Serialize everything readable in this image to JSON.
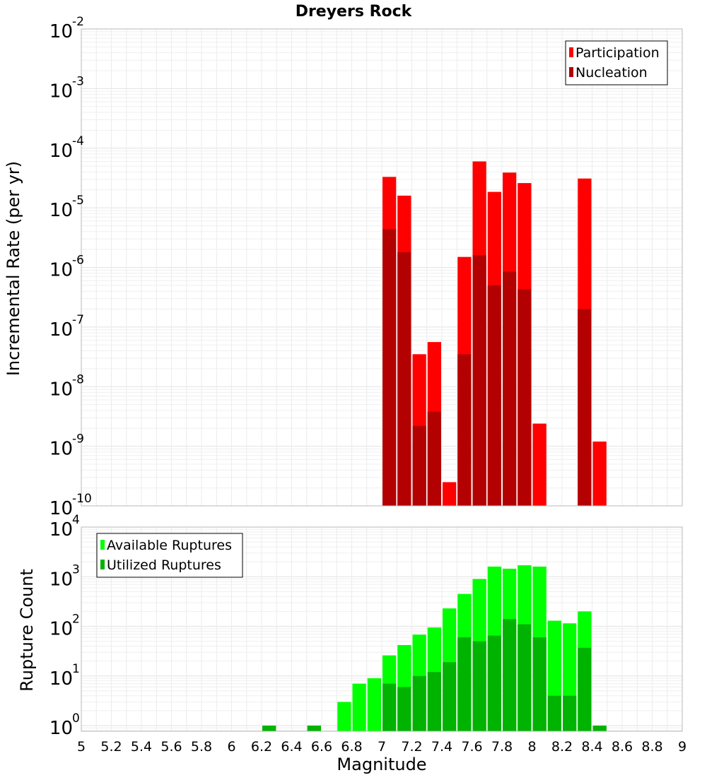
{
  "chart_data": [
    {
      "type": "bar",
      "title": "Dreyers Rock",
      "ylabel": "Incremental Rate (per yr)",
      "xlabel": "",
      "yscale": "log",
      "ylim": [
        1e-10,
        0.01
      ],
      "xlim": [
        5,
        9
      ],
      "legend_position": "top-right",
      "bar_width": 0.1,
      "y_ticks": [
        {
          "mantissa": "10",
          "exp": "-10"
        },
        {
          "mantissa": "10",
          "exp": "-9"
        },
        {
          "mantissa": "10",
          "exp": "-8"
        },
        {
          "mantissa": "10",
          "exp": "-7"
        },
        {
          "mantissa": "10",
          "exp": "-6"
        },
        {
          "mantissa": "10",
          "exp": "-5"
        },
        {
          "mantissa": "10",
          "exp": "-4"
        },
        {
          "mantissa": "10",
          "exp": "-3"
        },
        {
          "mantissa": "10",
          "exp": "-2"
        }
      ],
      "series": [
        {
          "name": "Participation",
          "color": "#ff0000",
          "x": [
            7.05,
            7.15,
            7.25,
            7.35,
            7.45,
            7.55,
            7.65,
            7.75,
            7.85,
            7.95,
            8.05,
            8.35,
            8.45
          ],
          "values": [
            3.3e-05,
            1.6e-05,
            3.5e-08,
            5.6e-08,
            2.5e-10,
            1.5e-06,
            6e-05,
            1.85e-05,
            3.9e-05,
            2.6e-05,
            2.4e-09,
            3.1e-05,
            1.2e-09
          ]
        },
        {
          "name": "Nucleation",
          "color": "#b30000",
          "x": [
            7.05,
            7.15,
            7.25,
            7.35,
            7.55,
            7.65,
            7.75,
            7.85,
            7.95,
            8.35
          ],
          "values": [
            4.4e-06,
            1.8e-06,
            2.2e-09,
            3.8e-09,
            3.5e-08,
            1.6e-06,
            5e-07,
            8.5e-07,
            4.3e-07,
            2e-07
          ]
        }
      ]
    },
    {
      "type": "bar",
      "title": "",
      "ylabel": "Rupture Count",
      "xlabel": "Magnitude",
      "yscale": "log",
      "ylim": [
        0.77,
        10000
      ],
      "xlim": [
        5,
        9
      ],
      "legend_position": "top-left",
      "bar_width": 0.1,
      "x_tick_labels": [
        "5",
        "5.2",
        "5.4",
        "5.6",
        "5.8",
        "6",
        "6.2",
        "6.4",
        "6.6",
        "6.8",
        "7",
        "7.2",
        "7.4",
        "7.6",
        "7.8",
        "8",
        "8.2",
        "8.4",
        "8.6",
        "8.8",
        "9"
      ],
      "y_ticks": [
        {
          "value": 1,
          "mantissa": "10",
          "exp": "0"
        },
        {
          "value": 10,
          "mantissa": "10",
          "exp": "1"
        },
        {
          "value": 100,
          "mantissa": "10",
          "exp": "2"
        },
        {
          "value": 1000,
          "mantissa": "10",
          "exp": "3"
        },
        {
          "value": 10000,
          "mantissa": "10",
          "exp": "4"
        }
      ],
      "series": [
        {
          "name": "Available Ruptures",
          "color": "#00ff00",
          "x": [
            6.25,
            6.55,
            6.75,
            6.85,
            6.95,
            7.05,
            7.15,
            7.25,
            7.35,
            7.45,
            7.55,
            7.65,
            7.75,
            7.85,
            7.95,
            8.05,
            8.15,
            8.25,
            8.35,
            8.45
          ],
          "values": [
            1,
            1,
            3,
            7,
            9,
            26,
            42,
            68,
            95,
            230,
            450,
            900,
            1600,
            1450,
            1700,
            1600,
            130,
            115,
            200,
            1
          ]
        },
        {
          "name": "Utilized Ruptures",
          "color": "#00b300",
          "x": [
            6.25,
            6.55,
            6.75,
            6.85,
            6.95,
            7.05,
            7.15,
            7.25,
            7.35,
            7.45,
            7.55,
            7.65,
            7.75,
            7.85,
            7.95,
            8.05,
            8.15,
            8.25,
            8.35,
            8.45
          ],
          "values": [
            1,
            1,
            0,
            0,
            0,
            7,
            6,
            10,
            12,
            19,
            60,
            50,
            65,
            140,
            110,
            60,
            4,
            4,
            37,
            1
          ]
        }
      ]
    }
  ]
}
